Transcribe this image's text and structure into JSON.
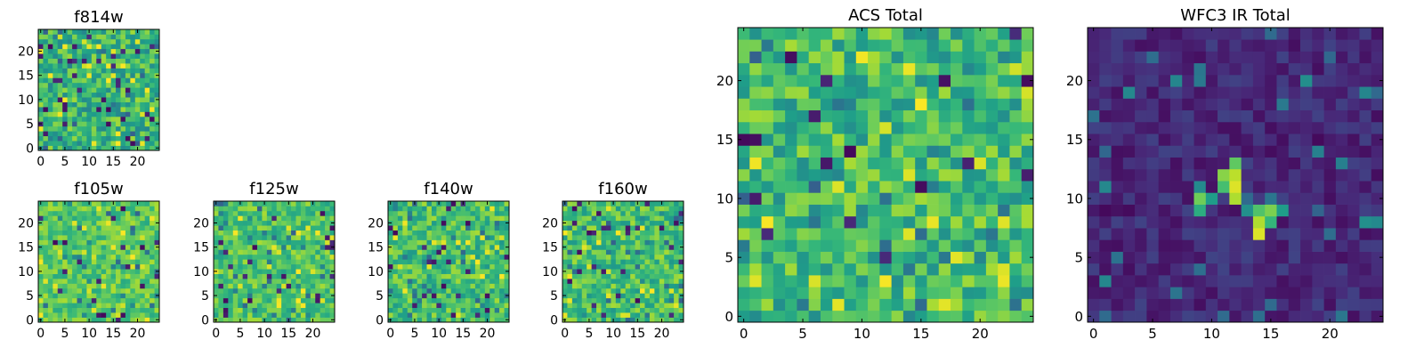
{
  "chart_data": [
    {
      "type": "heatmap",
      "title": "f814w",
      "x_ticks": [
        0,
        5,
        10,
        15,
        20
      ],
      "y_ticks": [
        0,
        5,
        10,
        15,
        20
      ],
      "xlim": [
        -0.5,
        24.5
      ],
      "ylim": [
        -0.5,
        24.5
      ],
      "grid_size": [
        25,
        25
      ],
      "colormap": "viridis",
      "seed": 814,
      "base": 0.66,
      "noise": 0.2
    },
    {
      "type": "heatmap",
      "title": "f105w",
      "x_ticks": [
        0,
        5,
        10,
        15,
        20
      ],
      "y_ticks": [
        0,
        5,
        10,
        15,
        20
      ],
      "xlim": [
        -0.5,
        24.5
      ],
      "ylim": [
        -0.5,
        24.5
      ],
      "grid_size": [
        25,
        25
      ],
      "colormap": "viridis",
      "seed": 105,
      "base": 0.74,
      "noise": 0.14
    },
    {
      "type": "heatmap",
      "title": "f125w",
      "x_ticks": [
        0,
        5,
        10,
        15,
        20
      ],
      "y_ticks": [
        0,
        5,
        10,
        15,
        20
      ],
      "xlim": [
        -0.5,
        24.5
      ],
      "ylim": [
        -0.5,
        24.5
      ],
      "grid_size": [
        25,
        25
      ],
      "colormap": "viridis",
      "seed": 125,
      "base": 0.72,
      "noise": 0.15
    },
    {
      "type": "heatmap",
      "title": "f140w",
      "x_ticks": [
        0,
        5,
        10,
        15,
        20
      ],
      "y_ticks": [
        0,
        5,
        10,
        15,
        20
      ],
      "xlim": [
        -0.5,
        24.5
      ],
      "ylim": [
        -0.5,
        24.5
      ],
      "grid_size": [
        25,
        25
      ],
      "colormap": "viridis",
      "seed": 140,
      "base": 0.7,
      "noise": 0.17
    },
    {
      "type": "heatmap",
      "title": "f160w",
      "x_ticks": [
        0,
        5,
        10,
        15,
        20
      ],
      "y_ticks": [
        0,
        5,
        10,
        15,
        20
      ],
      "xlim": [
        -0.5,
        24.5
      ],
      "ylim": [
        -0.5,
        24.5
      ],
      "grid_size": [
        25,
        25
      ],
      "colormap": "viridis",
      "seed": 160,
      "base": 0.7,
      "noise": 0.17
    },
    {
      "type": "heatmap",
      "title": "ACS Total",
      "x_ticks": [
        0,
        5,
        10,
        15,
        20
      ],
      "y_ticks": [
        0,
        5,
        10,
        15,
        20
      ],
      "xlim": [
        -0.5,
        24.5
      ],
      "ylim": [
        -0.5,
        24.5
      ],
      "grid_size": [
        25,
        25
      ],
      "colormap": "viridis",
      "seed": 2016,
      "base": 0.68,
      "noise": 0.19
    },
    {
      "type": "heatmap",
      "title": "WFC3 IR Total",
      "x_ticks": [
        0,
        5,
        10,
        15,
        20
      ],
      "y_ticks": [
        0,
        5,
        10,
        15,
        20
      ],
      "xlim": [
        -0.5,
        24.5
      ],
      "ylim": [
        -0.5,
        24.5
      ],
      "grid_size": [
        25,
        25
      ],
      "colormap": "viridis",
      "seed": 3100,
      "base": 0.12,
      "noise": 0.08,
      "bright_pixels": [
        [
          9,
          10,
          0.78
        ],
        [
          9,
          9,
          0.62
        ],
        [
          10,
          10,
          0.55
        ],
        [
          11,
          12,
          0.82
        ],
        [
          11,
          11,
          0.7
        ],
        [
          12,
          13,
          0.75
        ],
        [
          12,
          12,
          0.9
        ],
        [
          12,
          11,
          0.95
        ],
        [
          12,
          10,
          0.88
        ],
        [
          13,
          9,
          0.5
        ],
        [
          14,
          9,
          0.72
        ],
        [
          14,
          8,
          0.88
        ],
        [
          14,
          7,
          0.95
        ],
        [
          15,
          9,
          0.8
        ],
        [
          15,
          8,
          0.66
        ],
        [
          16,
          9,
          0.55
        ]
      ]
    }
  ]
}
